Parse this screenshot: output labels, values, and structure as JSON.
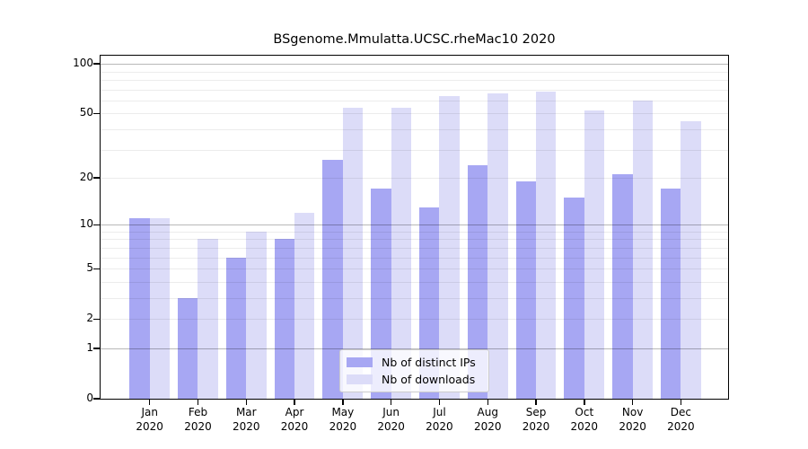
{
  "chart_data": {
    "type": "bar",
    "title": "BSgenome.Mmulatta.UCSC.rheMac10 2020",
    "categories": [
      "Jan 2020",
      "Feb 2020",
      "Mar 2020",
      "Apr 2020",
      "May 2020",
      "Jun 2020",
      "Jul 2020",
      "Aug 2020",
      "Sep 2020",
      "Oct 2020",
      "Nov 2020",
      "Dec 2020"
    ],
    "series": [
      {
        "name": "Nb of distinct IPs",
        "color": "#a7a7f3",
        "values": [
          11,
          3,
          6,
          8,
          26,
          17,
          13,
          24,
          19,
          15,
          21,
          17
        ]
      },
      {
        "name": "Nb of downloads",
        "color": "#dcdcf8",
        "values": [
          11,
          8,
          9,
          12,
          54,
          54,
          64,
          66,
          68,
          52,
          60,
          45
        ]
      }
    ],
    "xlabel": "",
    "ylabel": "",
    "yscale": "log1p",
    "ylim": [
      0,
      112
    ],
    "y_ticks": [
      100,
      50,
      20,
      10,
      5,
      2,
      1,
      0
    ],
    "grid_minor": [
      2,
      3,
      4,
      5,
      6,
      7,
      8,
      9,
      20,
      30,
      40,
      50,
      60,
      70,
      80,
      90
    ],
    "grid_major": [
      1,
      10,
      100
    ],
    "grid": "on",
    "legend_position": "bottom-center"
  }
}
